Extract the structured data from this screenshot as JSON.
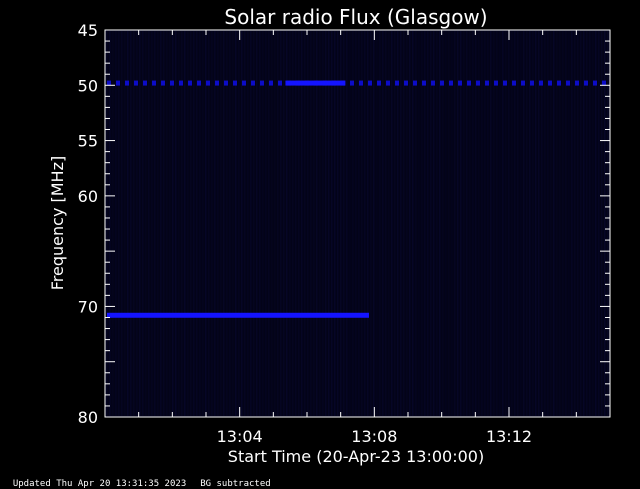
{
  "chart_data": {
    "type": "heatmap",
    "title": "Solar radio Flux (Glasgow)",
    "ylabel": "Frequency [MHz]",
    "xlabel": "Start Time (20-Apr-23 13:00:00)",
    "ylim": [
      45,
      80
    ],
    "y_ticks": [
      45,
      50,
      55,
      60,
      70,
      80
    ],
    "xlim_minutes": [
      0,
      15
    ],
    "x_ticks": [
      {
        "minute": 4,
        "label": "13:04"
      },
      {
        "minute": 8,
        "label": "13:08"
      },
      {
        "minute": 12,
        "label": "13:12"
      }
    ],
    "features": [
      {
        "name": "",
        "frequency_mhz": 49.8,
        "start_min": 0.0,
        "end_min": 15.0,
        "kind": "dashed interference line"
      },
      {
        "name": "",
        "frequency_mhz": 49.8,
        "start_min": 5.3,
        "end_min": 7.2,
        "kind": "solid band"
      },
      {
        "name": "",
        "frequency_mhz": 70.8,
        "start_min": 0.0,
        "end_min": 7.9,
        "kind": "solid band"
      }
    ],
    "colors": {
      "background": "#000000",
      "plot": "#030318",
      "band": "#1414ff",
      "axes": "#ffffff"
    }
  },
  "footer": {
    "updated": "Updated Thu Apr 20 13:31:35 2023",
    "bg": "BG subtracted"
  }
}
